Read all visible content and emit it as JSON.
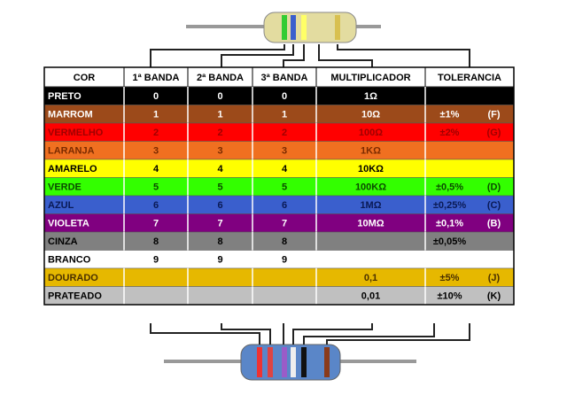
{
  "table": {
    "headers": [
      "COR",
      "1ª BANDA",
      "2ª BANDA",
      "3ª BANDA",
      "MULTIPLICADOR",
      "TOLERANCIA"
    ],
    "rows": [
      {
        "cells": [
          "PRETO",
          0,
          0,
          0,
          "1Ω",
          null,
          null
        ],
        "color": "#000000",
        "text_color": "#ffffff"
      },
      {
        "cells": [
          "MARROM",
          1,
          1,
          1,
          "10Ω",
          "±1%",
          "(F)"
        ],
        "color": "#9c4a1a",
        "text_color": "#ffffff"
      },
      {
        "cells": [
          "VERMELHO",
          2,
          2,
          2,
          "100Ω",
          "±2%",
          "(G)"
        ],
        "color": "#ff0000",
        "text_color": "#a00000"
      },
      {
        "cells": [
          "LARANJA",
          3,
          3,
          3,
          "1KΩ",
          null,
          null
        ],
        "color": "#f07020",
        "text_color": "#7a2a00"
      },
      {
        "cells": [
          "AMARELO",
          4,
          4,
          4,
          "10KΩ",
          null,
          null
        ],
        "color": "#ffff00",
        "text_color": "#000000"
      },
      {
        "cells": [
          "VERDE",
          5,
          5,
          5,
          "100KΩ",
          "±0,5%",
          "(D)"
        ],
        "color": "#33ff00",
        "text_color": "#0a4a00"
      },
      {
        "cells": [
          "AZUL",
          6,
          6,
          6,
          "1MΩ",
          "±0,25%",
          "(C)"
        ],
        "color": "#3a5fcd",
        "text_color": "#0a1a55"
      },
      {
        "cells": [
          "VIOLETA",
          7,
          7,
          7,
          "10MΩ",
          "±0,1%",
          "(B)"
        ],
        "color": "#800080",
        "text_color": "#ffffff"
      },
      {
        "cells": [
          "CINZA",
          8,
          8,
          8,
          null,
          "±0,05%",
          null
        ],
        "color": "#808080",
        "text_color": "#000000"
      },
      {
        "cells": [
          "BRANCO",
          9,
          9,
          9,
          null,
          null,
          null
        ],
        "color": "#ffffff",
        "text_color": "#000000"
      },
      {
        "cells": [
          "DOURADO",
          null,
          null,
          null,
          "0,1",
          "±5%",
          "(J)"
        ],
        "color": "#e6b800",
        "text_color": "#4a3000"
      },
      {
        "cells": [
          "PRATEADO",
          null,
          null,
          null,
          "0,01",
          "±10%",
          "(K)"
        ],
        "color": "#c0c0c0",
        "text_color": "#000000"
      }
    ]
  }
}
